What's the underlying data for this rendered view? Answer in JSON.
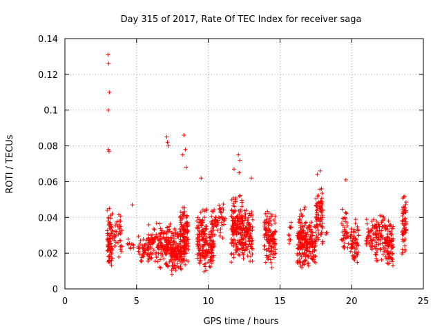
{
  "chart_data": {
    "type": "scatter",
    "title": "Day 315 of 2017, Rate Of TEC Index for receiver saga",
    "xlabel": "GPS time / hours",
    "ylabel": "ROTI / TECUs",
    "xlim": [
      0,
      25
    ],
    "ylim": [
      0,
      0.14
    ],
    "x_ticks": [
      0,
      5,
      10,
      15,
      20,
      25
    ],
    "x_tick_labels": [
      "0",
      "5",
      "10",
      "15",
      "20",
      "25"
    ],
    "y_ticks": [
      0,
      0.02,
      0.04,
      0.06,
      0.08,
      0.1,
      0.12,
      0.14
    ],
    "y_tick_labels": [
      "0",
      "0.02",
      "0.04",
      "0.06",
      "0.08",
      "0.1",
      "0.12",
      "0.14"
    ],
    "grid": true,
    "marker": "plus",
    "colors": {
      "points": "#ff0000",
      "grid": "#a0a0a0",
      "axes": "#000000",
      "background": "#ffffff"
    },
    "series": [
      {
        "name": "ROTI",
        "seed": 315,
        "x": [
          3.0,
          3.05,
          3.1,
          3.02,
          3.08,
          3.03,
          2.95,
          3.1,
          3.05,
          3.0,
          2.98,
          3.12,
          3.2,
          3.3,
          4.7,
          19.6,
          7.1,
          7.15,
          7.2,
          8.3,
          8.4,
          8.2,
          8.45,
          12.1,
          12.2,
          12.15,
          11.8,
          13.0,
          9.5,
          17.8,
          17.6,
          17.9
        ],
        "y": [
          0.131,
          0.126,
          0.11,
          0.1,
          0.077,
          0.078,
          0.044,
          0.045,
          0.04,
          0.038,
          0.03,
          0.034,
          0.036,
          0.042,
          0.047,
          0.061,
          0.085,
          0.082,
          0.08,
          0.086,
          0.078,
          0.075,
          0.068,
          0.075,
          0.072,
          0.065,
          0.067,
          0.062,
          0.062,
          0.066,
          0.064,
          0.056
        ],
        "clusters": [
          {
            "x": [
              2.95,
              3.3
            ],
            "y_center": 0.025,
            "y_spread": 0.012,
            "count": 70
          },
          {
            "x": [
              3.3,
              4.0
            ],
            "y_center": 0.03,
            "y_spread": 0.01,
            "count": 40
          },
          {
            "x": [
              4.3,
              4.8
            ],
            "y_center": 0.025,
            "y_spread": 0.004,
            "count": 10
          },
          {
            "x": [
              5.1,
              5.8
            ],
            "y_center": 0.022,
            "y_spread": 0.007,
            "count": 40
          },
          {
            "x": [
              5.8,
              6.5
            ],
            "y_center": 0.025,
            "y_spread": 0.009,
            "count": 60
          },
          {
            "x": [
              6.5,
              7.4
            ],
            "y_center": 0.024,
            "y_spread": 0.01,
            "count": 110
          },
          {
            "x": [
              7.4,
              8.0
            ],
            "y_center": 0.021,
            "y_spread": 0.01,
            "count": 100
          },
          {
            "x": [
              8.0,
              8.6
            ],
            "y_center": 0.028,
            "y_spread": 0.013,
            "count": 140
          },
          {
            "x": [
              9.2,
              9.9
            ],
            "y_center": 0.028,
            "y_spread": 0.014,
            "count": 120
          },
          {
            "x": [
              9.9,
              10.4
            ],
            "y_center": 0.022,
            "y_spread": 0.008,
            "count": 60
          },
          {
            "x": [
              10.2,
              11.2
            ],
            "y_center": 0.038,
            "y_spread": 0.008,
            "count": 60
          },
          {
            "x": [
              11.6,
              12.4
            ],
            "y_center": 0.034,
            "y_spread": 0.015,
            "count": 160
          },
          {
            "x": [
              12.4,
              13.1
            ],
            "y_center": 0.03,
            "y_spread": 0.012,
            "count": 100
          },
          {
            "x": [
              13.9,
              14.7
            ],
            "y_center": 0.028,
            "y_spread": 0.012,
            "count": 120
          },
          {
            "x": [
              15.6,
              15.8
            ],
            "y_center": 0.03,
            "y_spread": 0.008,
            "count": 10
          },
          {
            "x": [
              16.2,
              16.8
            ],
            "y_center": 0.028,
            "y_spread": 0.013,
            "count": 120
          },
          {
            "x": [
              16.8,
              17.5
            ],
            "y_center": 0.025,
            "y_spread": 0.01,
            "count": 90
          },
          {
            "x": [
              17.5,
              18.0
            ],
            "y_center": 0.04,
            "y_spread": 0.012,
            "count": 80
          },
          {
            "x": [
              18.2,
              18.4
            ],
            "y_center": 0.03,
            "y_spread": 0.002,
            "count": 3
          },
          {
            "x": [
              19.3,
              19.8
            ],
            "y_center": 0.032,
            "y_spread": 0.012,
            "count": 40
          },
          {
            "x": [
              19.9,
              20.5
            ],
            "y_center": 0.026,
            "y_spread": 0.01,
            "count": 60
          },
          {
            "x": [
              21.0,
              21.6
            ],
            "y_center": 0.03,
            "y_spread": 0.008,
            "count": 40
          },
          {
            "x": [
              21.6,
              22.3
            ],
            "y_center": 0.03,
            "y_spread": 0.012,
            "count": 70
          },
          {
            "x": [
              22.3,
              22.9
            ],
            "y_center": 0.025,
            "y_spread": 0.01,
            "count": 90
          },
          {
            "x": [
              23.5,
              23.8
            ],
            "y_center": 0.035,
            "y_spread": 0.013,
            "count": 60
          }
        ]
      }
    ]
  }
}
